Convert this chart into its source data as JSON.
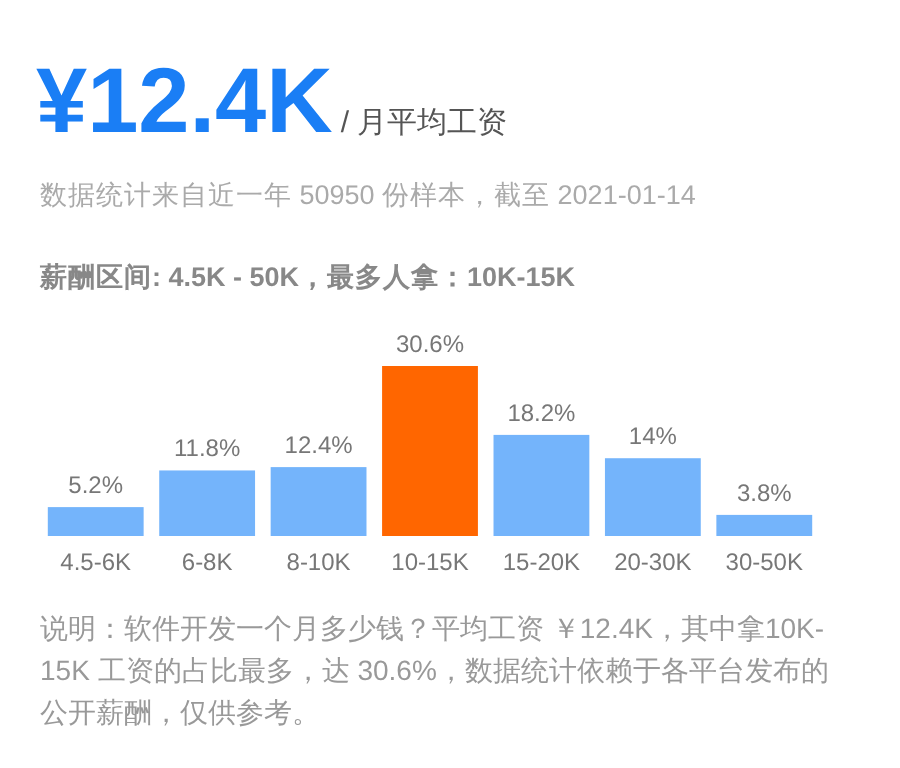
{
  "chart_data": {
    "type": "bar",
    "title": "¥12.4K",
    "subtitle": "/ 月平均工资",
    "annotations": [
      "数据统计来自近一年 50950 份样本，截至 2021-01-14",
      "薪酬区间: 4.5K - 50K，最多人拿：10K-15K",
      "说明：软件开发一个月多少钱？平均工资 ￥12.4K，其中拿10K-15K 工资的占比最多，达 30.6%，数据统计依赖于各平台发布的公开薪酬，仅供参考。"
    ],
    "categories": [
      "4.5-6K",
      "6-8K",
      "8-10K",
      "10-15K",
      "15-20K",
      "20-30K",
      "30-50K"
    ],
    "values": [
      5.2,
      11.8,
      12.4,
      30.6,
      18.2,
      14,
      3.8
    ],
    "value_labels": [
      "5.2%",
      "11.8%",
      "12.4%",
      "30.6%",
      "18.2%",
      "14%",
      "3.8%"
    ],
    "colors": [
      "#74b4fb",
      "#74b4fb",
      "#74b4fb",
      "#ff6600",
      "#74b4fb",
      "#74b4fb",
      "#74b4fb"
    ]
  }
}
